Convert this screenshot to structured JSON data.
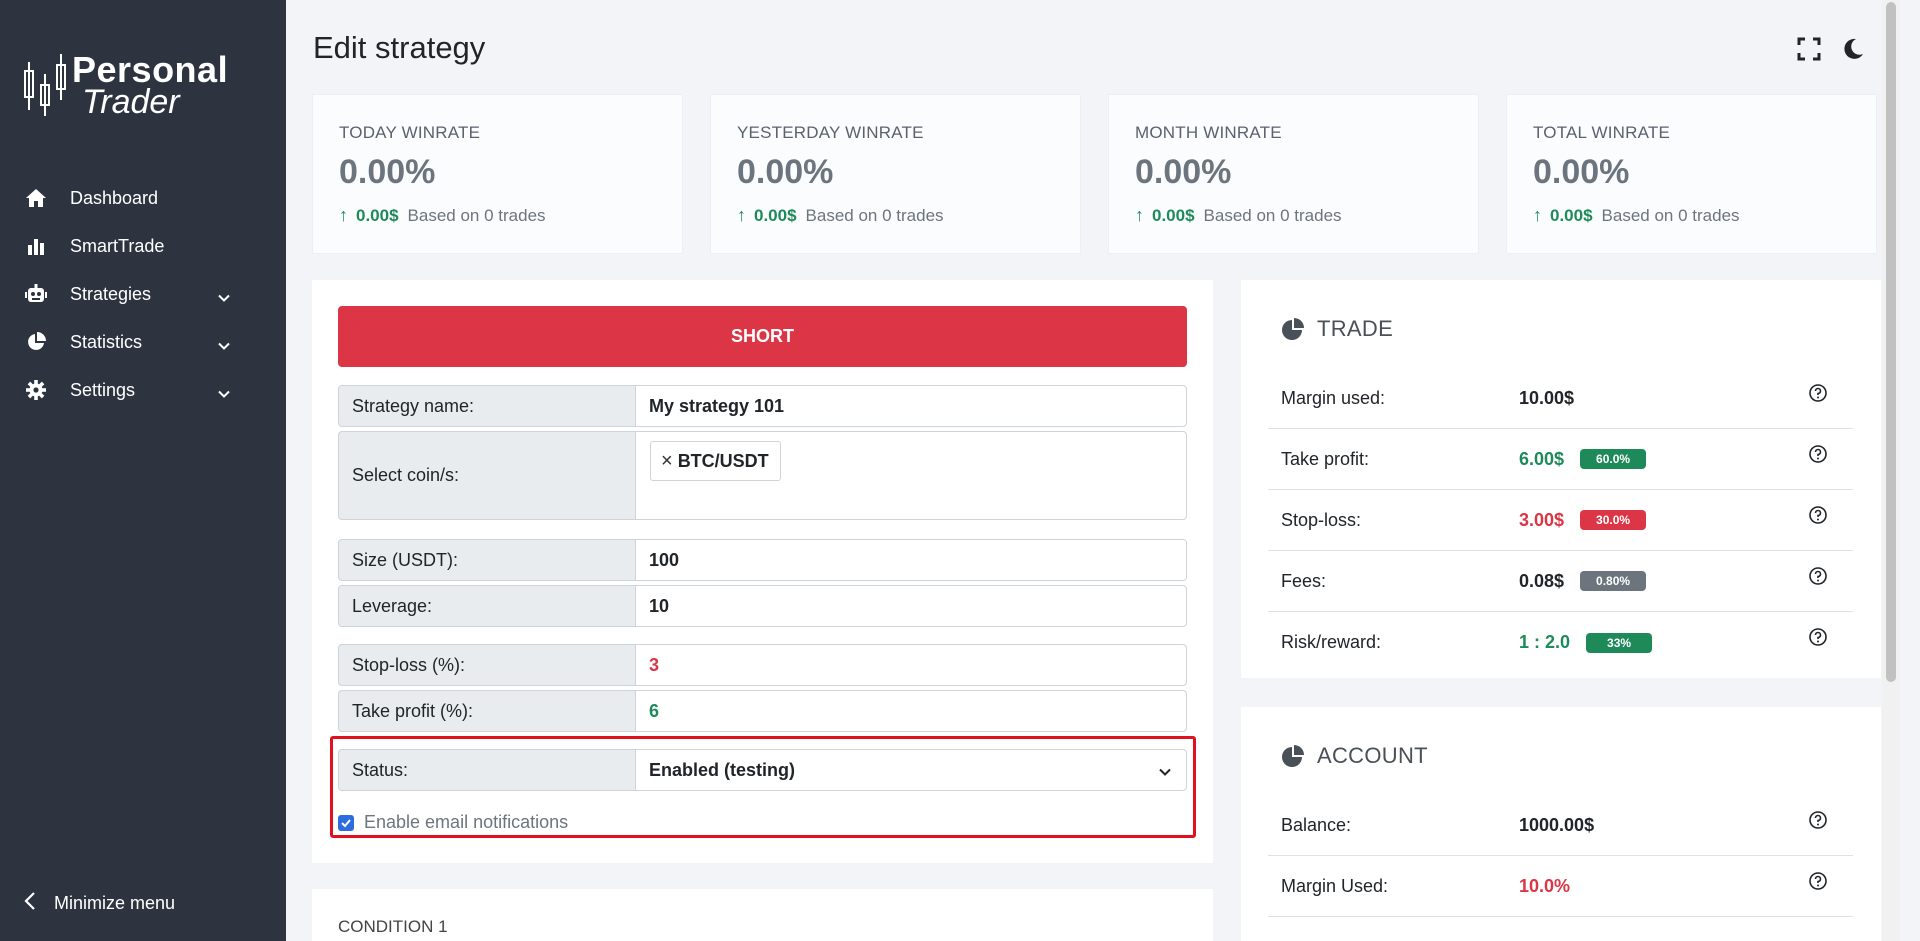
{
  "sidebar": {
    "logo": {
      "line1": "Personal",
      "line2": "Trader"
    },
    "items": [
      {
        "label": "Dashboard",
        "icon": "home-icon"
      },
      {
        "label": "SmartTrade",
        "icon": "bar-chart-icon"
      },
      {
        "label": "Strategies",
        "icon": "robot-icon",
        "expandable": true
      },
      {
        "label": "Statistics",
        "icon": "pie-chart-icon",
        "expandable": true
      },
      {
        "label": "Settings",
        "icon": "gear-icon",
        "expandable": true
      }
    ],
    "minimize_label": "Minimize menu"
  },
  "header": {
    "title": "Edit strategy",
    "icons": [
      "fullscreen-icon",
      "moon-icon"
    ]
  },
  "stats": [
    {
      "label": "TODAY WINRATE",
      "value": "0.00%",
      "amount": "0.00$",
      "sub": "Based on 0 trades"
    },
    {
      "label": "YESTERDAY WINRATE",
      "value": "0.00%",
      "amount": "0.00$",
      "sub": "Based on 0 trades"
    },
    {
      "label": "MONTH WINRATE",
      "value": "0.00%",
      "amount": "0.00$",
      "sub": "Based on 0 trades"
    },
    {
      "label": "TOTAL WINRATE",
      "value": "0.00%",
      "amount": "0.00$",
      "sub": "Based on 0 trades"
    }
  ],
  "form": {
    "direction_button": "SHORT",
    "strategy_name": {
      "label": "Strategy name:",
      "value": "My strategy 101"
    },
    "coins": {
      "label": "Select coin/s:",
      "selected": [
        "BTC/USDT"
      ]
    },
    "size": {
      "label": "Size (USDT):",
      "value": "100"
    },
    "leverage": {
      "label": "Leverage:",
      "value": "10"
    },
    "stop_loss": {
      "label": "Stop-loss (%):",
      "value": "3"
    },
    "take_profit": {
      "label": "Take profit (%):",
      "value": "6"
    },
    "status": {
      "label": "Status:",
      "value": "Enabled (testing)"
    },
    "email_notifications": {
      "label": "Enable email notifications",
      "checked": true
    }
  },
  "condition": {
    "title": "CONDITION 1"
  },
  "trade": {
    "title": "TRADE",
    "rows": [
      {
        "label": "Margin used:",
        "value": "10.00$",
        "color": "default",
        "badge": null
      },
      {
        "label": "Take profit:",
        "value": "6.00$",
        "color": "green",
        "badge": "60.0%",
        "badge_color": "green"
      },
      {
        "label": "Stop-loss:",
        "value": "3.00$",
        "color": "red",
        "badge": "30.0%",
        "badge_color": "red"
      },
      {
        "label": "Fees:",
        "value": "0.08$",
        "color": "default",
        "badge": "0.80%",
        "badge_color": "gray"
      },
      {
        "label": "Risk/reward:",
        "value": "1 : 2.0",
        "color": "green",
        "badge": "33%",
        "badge_color": "green"
      }
    ]
  },
  "account": {
    "title": "ACCOUNT",
    "rows": [
      {
        "label": "Balance:",
        "value": "1000.00$",
        "color": "default"
      },
      {
        "label": "Margin Used:",
        "value": "10.0%",
        "color": "red"
      }
    ]
  },
  "colors": {
    "sidebar": "#2d3440",
    "danger": "#dc3545",
    "success": "#1e8a5a",
    "highlight": "#e0101e",
    "checkbox": "#2d6cdf"
  }
}
